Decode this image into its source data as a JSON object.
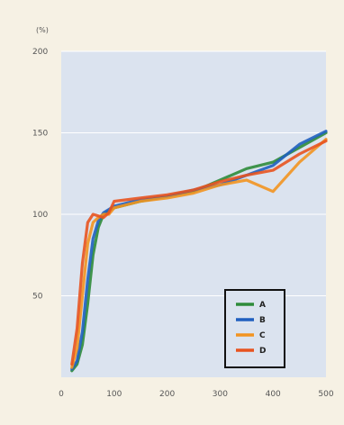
{
  "chart_data": {
    "type": "line",
    "ylabel": "(%)",
    "xlabel": "",
    "ylim": [
      0,
      200
    ],
    "xlim": [
      0,
      500
    ],
    "y_ticks": [
      {
        "value": 200,
        "label": "200"
      },
      {
        "value": 150,
        "label": "150"
      },
      {
        "value": 100,
        "label": "100"
      },
      {
        "value": 50,
        "label": "50"
      }
    ],
    "x_ticks": [
      {
        "value": 0,
        "label": "0"
      },
      {
        "value": 100,
        "label": "100"
      },
      {
        "value": 200,
        "label": "200"
      },
      {
        "value": 300,
        "label": "300"
      },
      {
        "value": 400,
        "label": "400"
      },
      {
        "value": 500,
        "label": "500"
      }
    ],
    "grid": true,
    "legend_position": "bottom-right",
    "background_color": "#dbe3ef",
    "series": [
      {
        "name": "A",
        "color": "#2e8b3a",
        "x": [
          20,
          30,
          40,
          50,
          60,
          70,
          80,
          90,
          100,
          150,
          200,
          250,
          300,
          350,
          400,
          450,
          500
        ],
        "y": [
          4,
          8,
          20,
          45,
          75,
          92,
          100,
          102,
          104,
          108,
          111,
          114,
          121,
          128,
          132,
          141,
          150
        ]
      },
      {
        "name": "B",
        "color": "#1f5fbf",
        "x": [
          20,
          30,
          40,
          50,
          60,
          70,
          80,
          90,
          100,
          150,
          200,
          250,
          300,
          350,
          400,
          450,
          500
        ],
        "y": [
          5,
          10,
          28,
          60,
          85,
          96,
          101,
          103,
          105,
          109,
          111,
          115,
          118,
          124,
          130,
          143,
          151
        ]
      },
      {
        "name": "C",
        "color": "#f29320",
        "x": [
          20,
          30,
          40,
          50,
          60,
          70,
          80,
          90,
          100,
          150,
          200,
          250,
          300,
          350,
          400,
          450,
          500
        ],
        "y": [
          6,
          18,
          50,
          82,
          95,
          98,
          100,
          100,
          104,
          108,
          110,
          113,
          118,
          121,
          114,
          132,
          146
        ]
      },
      {
        "name": "D",
        "color": "#e8531f",
        "x": [
          20,
          30,
          40,
          50,
          60,
          70,
          80,
          90,
          100,
          150,
          200,
          250,
          300,
          350,
          400,
          450,
          500
        ],
        "y": [
          8,
          30,
          70,
          95,
          100,
          99,
          98,
          101,
          108,
          110,
          112,
          115,
          120,
          124,
          127,
          137,
          145
        ]
      }
    ]
  }
}
